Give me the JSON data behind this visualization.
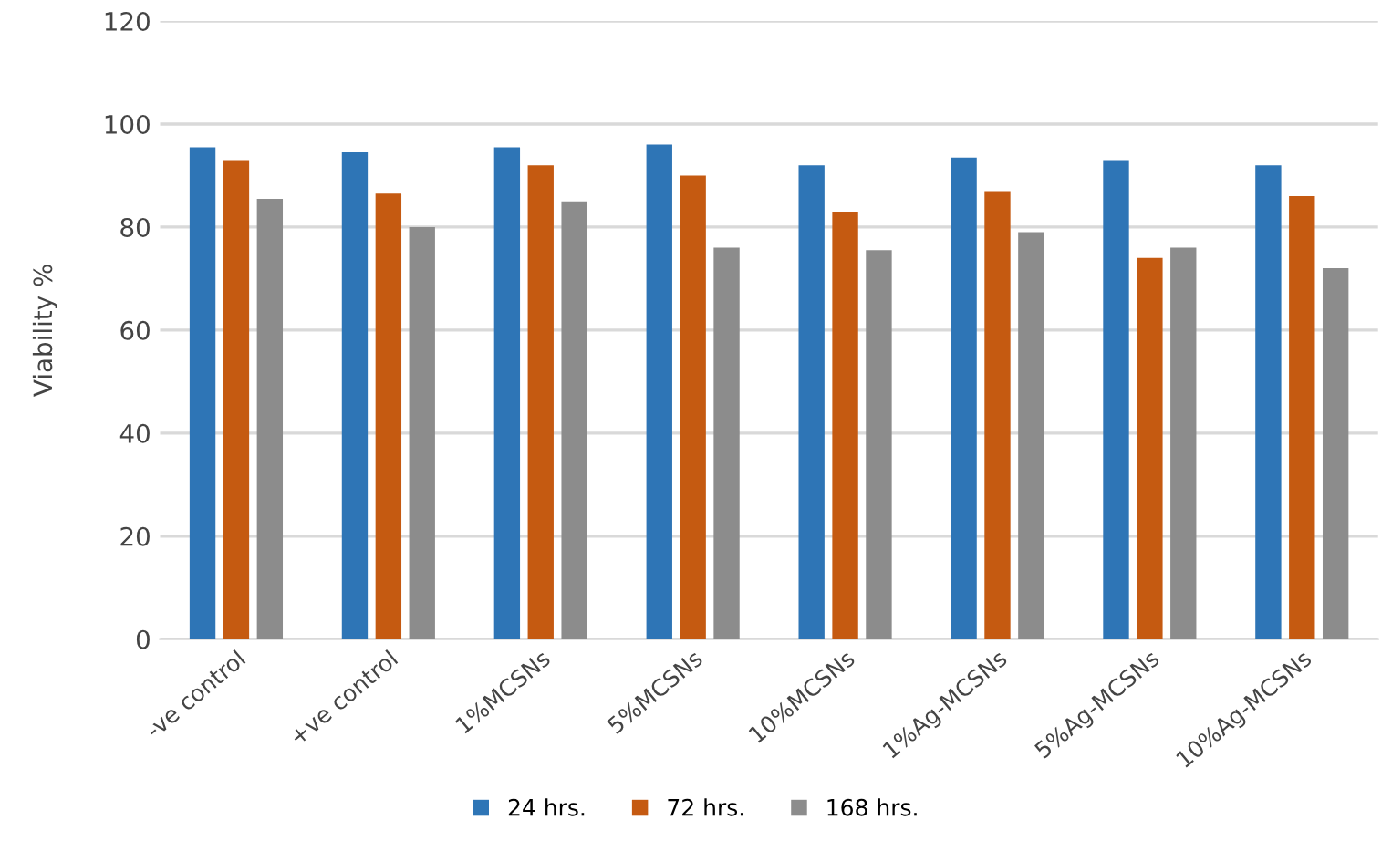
{
  "chart_data": {
    "type": "bar",
    "ylabel": "Viability %",
    "categories": [
      "-ve control",
      "+ve control",
      "1%MCSNs",
      "5%MCSNs",
      "10%MCSNs",
      "1%Ag-MCSNs",
      "5%Ag-MCSNs",
      "10%Ag-MCSNs"
    ],
    "series": [
      {
        "name": "24 hrs.",
        "color": "#2e75b6",
        "values": [
          95.5,
          94.5,
          95.5,
          96,
          92,
          93.5,
          93,
          92
        ]
      },
      {
        "name": "72 hrs.",
        "color": "#c55a11",
        "values": [
          93,
          86.5,
          92,
          90,
          83,
          87,
          74,
          86
        ]
      },
      {
        "name": "168 hrs.",
        "color": "#8c8c8c",
        "values": [
          85.5,
          80,
          85,
          76,
          75.5,
          79,
          76,
          72
        ]
      }
    ],
    "ylim": [
      0,
      120
    ],
    "yticks": [
      0,
      20,
      40,
      60,
      80,
      100,
      120
    ],
    "grid": "y",
    "legend": "bottom"
  }
}
